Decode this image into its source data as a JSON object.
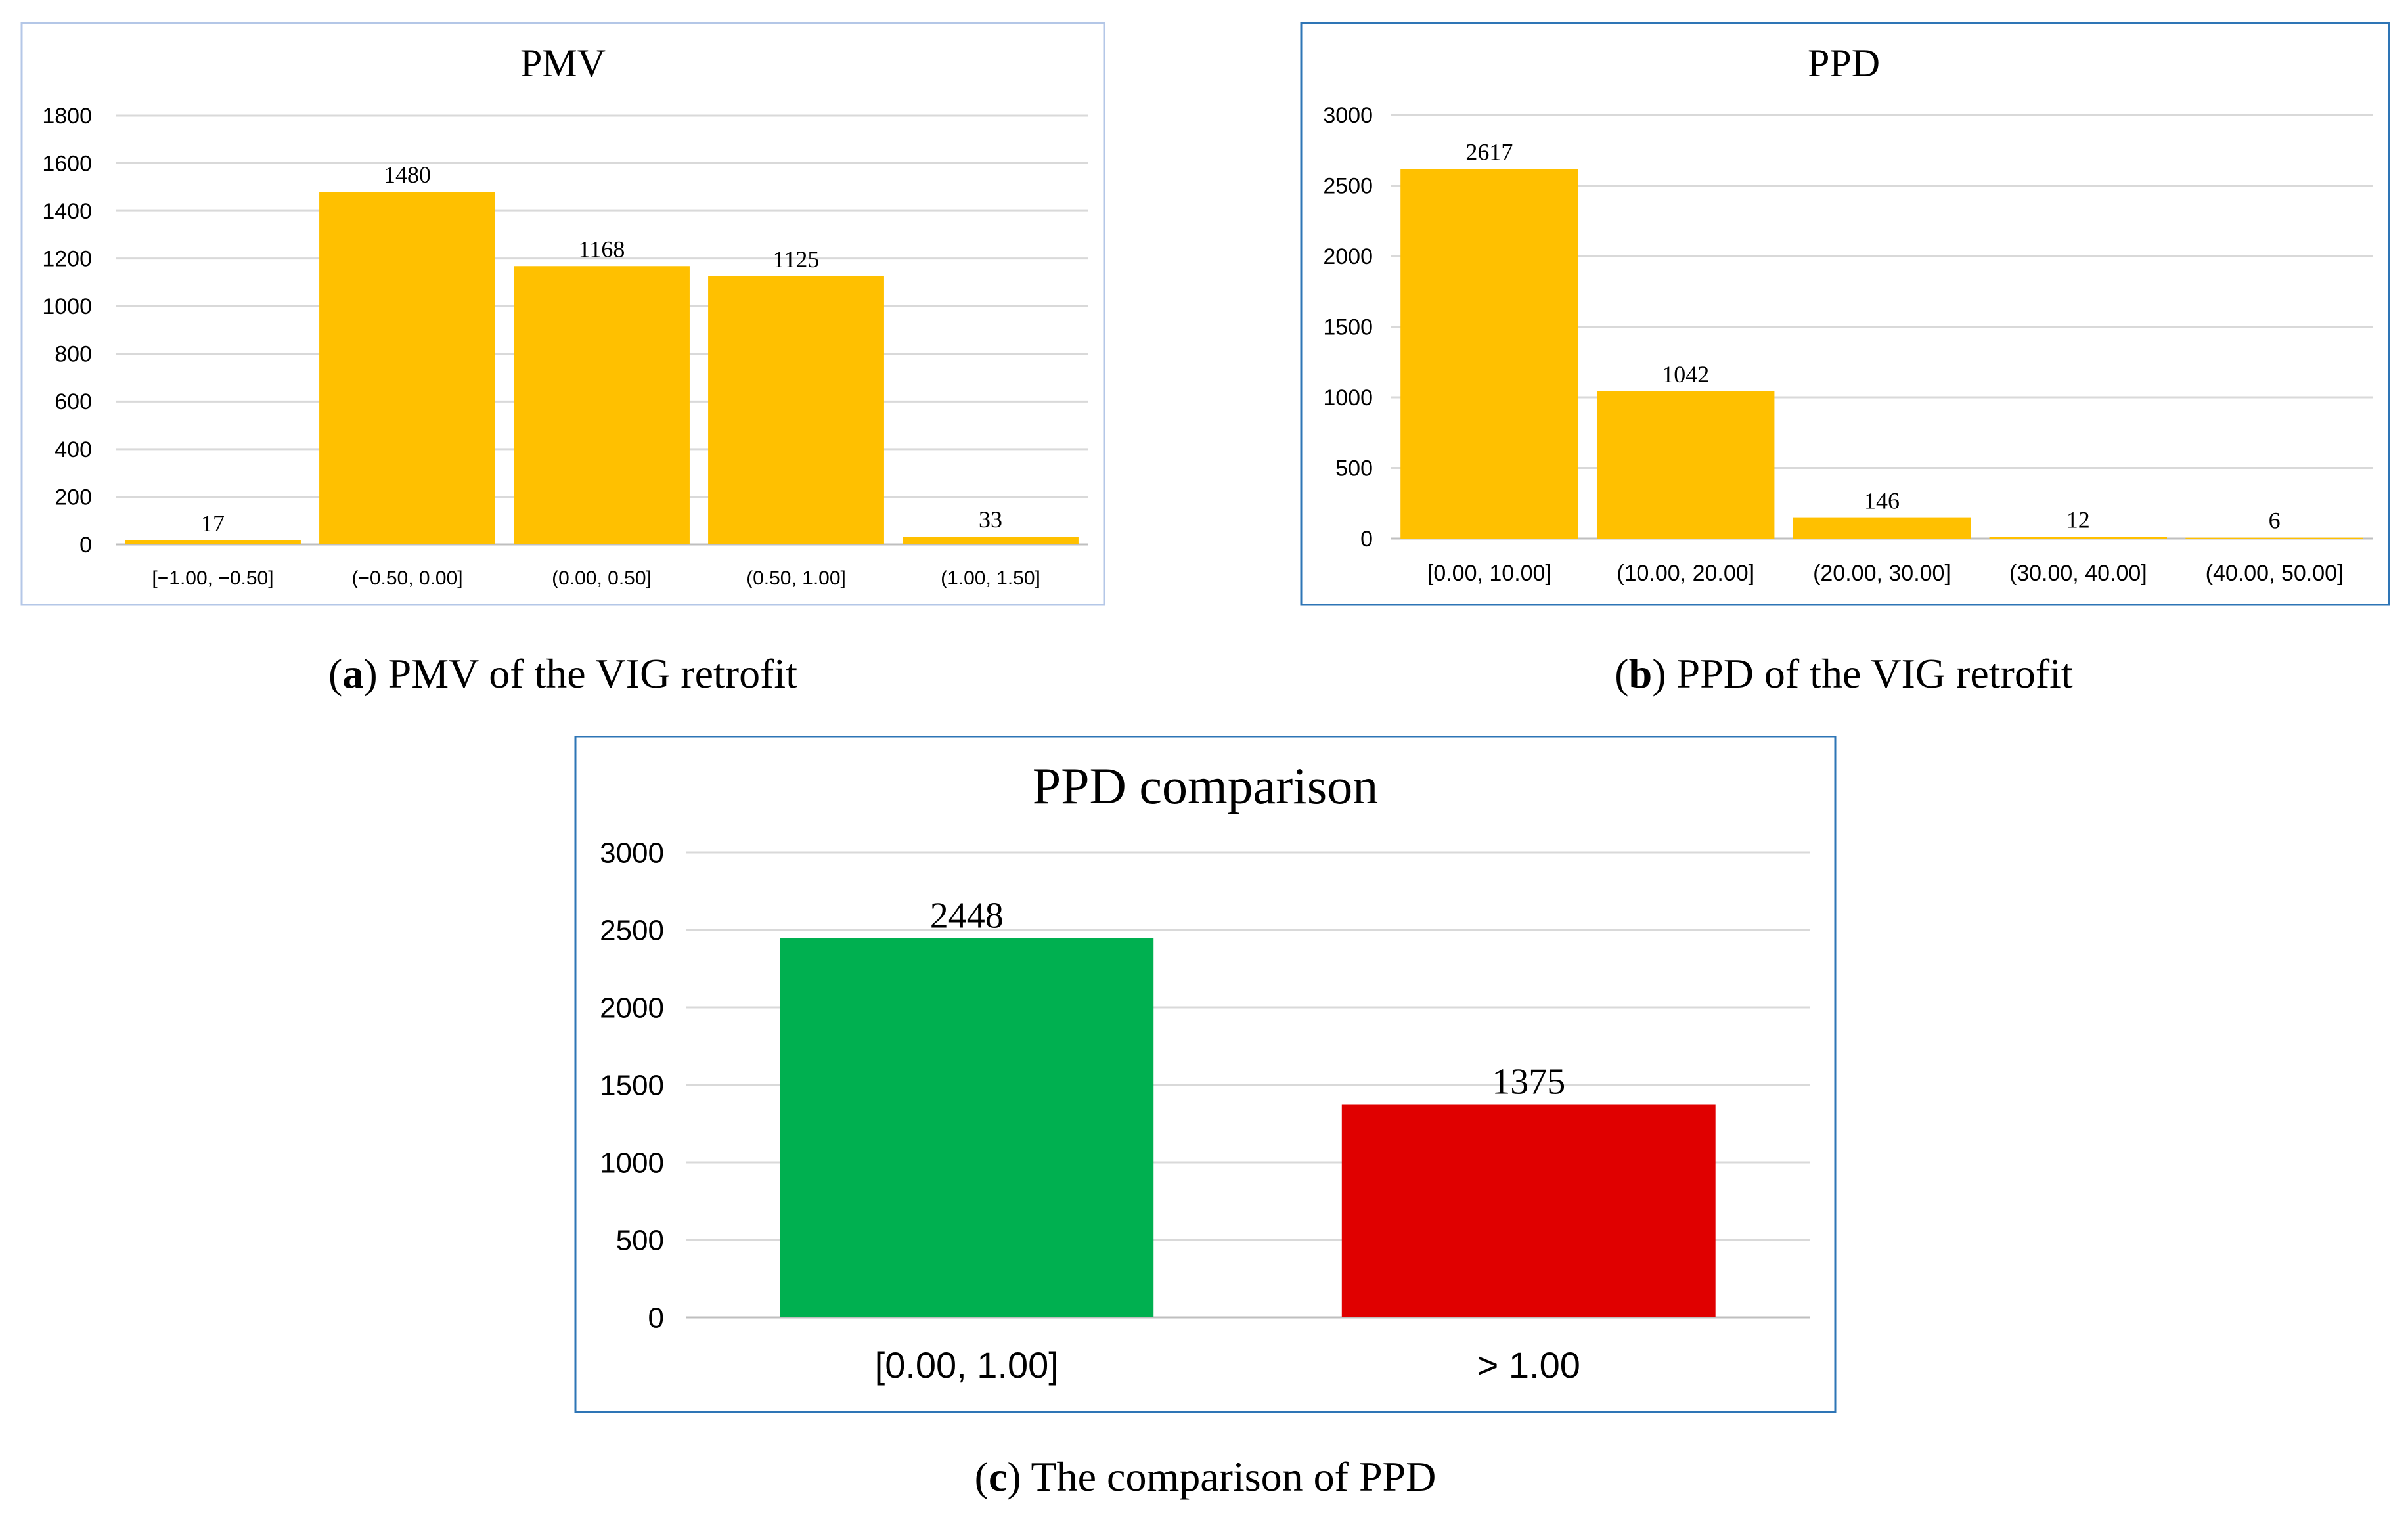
{
  "chart_data": [
    {
      "type": "bar",
      "title": "PMV",
      "caption_label": "a",
      "caption_text": " PMV of the VIG retrofit",
      "categories": [
        "[−1.00, −0.50]",
        "(−0.50, 0.00]",
        "(0.00, 0.50]",
        "(0.50, 1.00]",
        "(1.00, 1.50]"
      ],
      "values": [
        17,
        1480,
        1168,
        1125,
        33
      ],
      "value_labels": [
        "17",
        "1480",
        "1168",
        "1125",
        "33"
      ],
      "ylim": [
        0,
        1800
      ],
      "yticks": [
        "0",
        "200",
        "400",
        "600",
        "800",
        "1000",
        "1200",
        "1400",
        "1600",
        "1800"
      ],
      "xlabel": "",
      "ylabel": "",
      "grid": true,
      "colors": {
        "bar": "#FFC000",
        "frame": "#B4C7E7"
      }
    },
    {
      "type": "bar",
      "title": "PPD",
      "caption_label": "b",
      "caption_text": " PPD of the VIG retrofit",
      "categories": [
        "[0.00, 10.00]",
        "(10.00, 20.00]",
        "(20.00, 30.00]",
        "(30.00, 40.00]",
        "(40.00, 50.00]"
      ],
      "values": [
        2617,
        1042,
        146,
        12,
        6
      ],
      "value_labels": [
        "2617",
        "1042",
        "146",
        "12",
        "6"
      ],
      "ylim": [
        0,
        3000
      ],
      "yticks": [
        "0",
        "500",
        "1000",
        "1500",
        "2000",
        "2500",
        "3000"
      ],
      "xlabel": "",
      "ylabel": "",
      "grid": true,
      "colors": {
        "bar": "#FFC000",
        "frame": "#2E75B6"
      }
    },
    {
      "type": "bar",
      "title": "PPD comparison",
      "caption_label": "c",
      "caption_text": " The comparison of PPD",
      "categories": [
        "[0.00, 1.00]",
        "> 1.00"
      ],
      "values": [
        2448,
        1375
      ],
      "value_labels": [
        "2448",
        "1375"
      ],
      "ylim": [
        0,
        3000
      ],
      "yticks": [
        "0",
        "500",
        "1000",
        "1500",
        "2000",
        "2500",
        "3000"
      ],
      "xlabel": "",
      "ylabel": "",
      "grid": true,
      "colors": {
        "bars": [
          "#00B050",
          "#E00000"
        ],
        "frame": "#2E75B6"
      }
    }
  ]
}
